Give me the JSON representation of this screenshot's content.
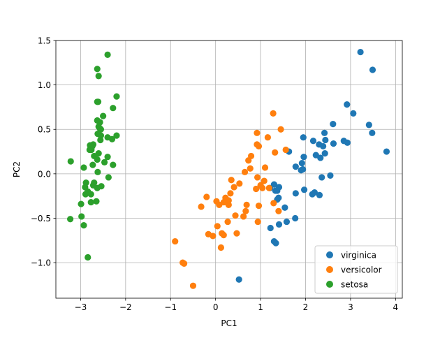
{
  "chart_data": {
    "type": "scatter",
    "title": "",
    "xlabel": "PC1",
    "ylabel": "PC2",
    "xlim": [
      -3.55,
      4.15
    ],
    "ylim": [
      -1.4,
      1.5
    ],
    "x_ticks": [
      -3,
      -2,
      -1,
      0,
      1,
      2,
      3,
      4
    ],
    "y_ticks": [
      -1.0,
      -0.5,
      0.0,
      0.5,
      1.0,
      1.5
    ],
    "x_tick_labels": [
      "−3",
      "−2",
      "−1",
      "0",
      "1",
      "2",
      "3",
      "4"
    ],
    "y_tick_labels": [
      "−1.0",
      "−0.5",
      "0.0",
      "0.5",
      "1.0",
      "1.5"
    ],
    "grid": true,
    "legend_position": "lower-right",
    "series": [
      {
        "name": "virginica",
        "color": "#1f77b4",
        "points": [
          [
            3.22,
            1.37
          ],
          [
            3.49,
            1.17
          ],
          [
            2.92,
            0.78
          ],
          [
            3.06,
            0.68
          ],
          [
            2.61,
            0.56
          ],
          [
            3.41,
            0.55
          ],
          [
            3.48,
            0.46
          ],
          [
            2.42,
            0.46
          ],
          [
            2.44,
            0.38
          ],
          [
            2.85,
            0.37
          ],
          [
            2.17,
            0.37
          ],
          [
            2.93,
            0.35
          ],
          [
            2.62,
            0.34
          ],
          [
            2.3,
            0.33
          ],
          [
            2.39,
            0.31
          ],
          [
            1.95,
            0.41
          ],
          [
            2.23,
            0.21
          ],
          [
            2.33,
            0.18
          ],
          [
            1.92,
            0.12
          ],
          [
            3.8,
            0.25
          ],
          [
            2.43,
            0.23
          ],
          [
            1.96,
            0.19
          ],
          [
            1.63,
            0.25
          ],
          [
            1.9,
            0.04
          ],
          [
            1.94,
            0.05
          ],
          [
            1.78,
            0.08
          ],
          [
            2.36,
            -0.04
          ],
          [
            2.55,
            -0.02
          ],
          [
            1.97,
            -0.18
          ],
          [
            2.2,
            -0.21
          ],
          [
            2.15,
            -0.23
          ],
          [
            1.78,
            -0.22
          ],
          [
            2.31,
            -0.24
          ],
          [
            1.21,
            -0.16
          ],
          [
            1.3,
            -0.12
          ],
          [
            1.33,
            -0.19
          ],
          [
            1.41,
            -0.15
          ],
          [
            1.37,
            -0.19
          ],
          [
            1.4,
            -0.27
          ],
          [
            1.37,
            -0.29
          ],
          [
            1.54,
            -0.38
          ],
          [
            1.77,
            -0.5
          ],
          [
            1.41,
            -0.57
          ],
          [
            1.58,
            -0.54
          ],
          [
            1.22,
            -0.61
          ],
          [
            1.3,
            -0.76
          ],
          [
            1.34,
            -0.78
          ],
          [
            0.52,
            -1.19
          ]
        ]
      },
      {
        "name": "versicolor",
        "color": "#ff7f0e",
        "points": [
          [
            1.28,
            0.68
          ],
          [
            1.45,
            0.5
          ],
          [
            0.92,
            0.46
          ],
          [
            1.16,
            0.41
          ],
          [
            0.92,
            0.33
          ],
          [
            0.96,
            0.31
          ],
          [
            0.79,
            0.2
          ],
          [
            1.32,
            0.24
          ],
          [
            1.56,
            0.27
          ],
          [
            0.73,
            0.15
          ],
          [
            0.65,
            0.02
          ],
          [
            0.77,
            0.06
          ],
          [
            1.1,
            0.07
          ],
          [
            0.93,
            -0.04
          ],
          [
            0.53,
            -0.11
          ],
          [
            1.0,
            -0.13
          ],
          [
            0.9,
            -0.17
          ],
          [
            1.08,
            -0.08
          ],
          [
            1.04,
            -0.16
          ],
          [
            0.35,
            -0.07
          ],
          [
            1.19,
            -0.16
          ],
          [
            0.41,
            -0.15
          ],
          [
            0.22,
            -0.27
          ],
          [
            0.18,
            -0.32
          ],
          [
            -0.2,
            -0.26
          ],
          [
            0.33,
            -0.22
          ],
          [
            0.29,
            -0.3
          ],
          [
            0.24,
            -0.32
          ],
          [
            0.29,
            -0.35
          ],
          [
            1.29,
            -0.33
          ],
          [
            1.4,
            -0.42
          ],
          [
            0.96,
            -0.36
          ],
          [
            0.69,
            -0.35
          ],
          [
            -0.32,
            -0.37
          ],
          [
            0.02,
            -0.31
          ],
          [
            0.08,
            -0.35
          ],
          [
            0.67,
            -0.42
          ],
          [
            0.62,
            -0.48
          ],
          [
            0.94,
            -0.54
          ],
          [
            0.27,
            -0.54
          ],
          [
            0.44,
            -0.47
          ],
          [
            0.04,
            -0.59
          ],
          [
            0.14,
            -0.67
          ],
          [
            -0.16,
            -0.68
          ],
          [
            -0.06,
            -0.7
          ],
          [
            0.18,
            -0.69
          ],
          [
            0.47,
            -0.67
          ],
          [
            0.12,
            -0.83
          ],
          [
            -0.9,
            -0.76
          ],
          [
            -0.73,
            -1.0
          ],
          [
            -0.7,
            -1.01
          ],
          [
            -0.5,
            -1.26
          ]
        ]
      },
      {
        "name": "setosa",
        "color": "#2ca02c",
        "points": [
          [
            -2.4,
            1.34
          ],
          [
            -2.63,
            1.18
          ],
          [
            -2.6,
            1.1
          ],
          [
            -2.2,
            0.87
          ],
          [
            -2.63,
            0.81
          ],
          [
            -2.61,
            0.81
          ],
          [
            -2.28,
            0.74
          ],
          [
            -2.5,
            0.65
          ],
          [
            -2.63,
            0.6
          ],
          [
            -2.57,
            0.58
          ],
          [
            -2.6,
            0.53
          ],
          [
            -2.57,
            0.51
          ],
          [
            -2.55,
            0.5
          ],
          [
            -2.62,
            0.45
          ],
          [
            -2.55,
            0.43
          ],
          [
            -2.2,
            0.43
          ],
          [
            -2.4,
            0.41
          ],
          [
            -2.3,
            0.39
          ],
          [
            -2.56,
            0.38
          ],
          [
            -2.72,
            0.33
          ],
          [
            -2.79,
            0.32
          ],
          [
            -2.74,
            0.31
          ],
          [
            -2.8,
            0.27
          ],
          [
            -2.76,
            0.27
          ],
          [
            -2.6,
            0.23
          ],
          [
            -2.7,
            0.2
          ],
          [
            -2.4,
            0.19
          ],
          [
            -2.63,
            0.16
          ],
          [
            -2.47,
            0.13
          ],
          [
            -3.22,
            0.14
          ],
          [
            -2.73,
            0.1
          ],
          [
            -2.28,
            0.1
          ],
          [
            -2.93,
            0.07
          ],
          [
            -2.62,
            0.02
          ],
          [
            -2.38,
            -0.04
          ],
          [
            -2.7,
            -0.1
          ],
          [
            -2.88,
            -0.1
          ],
          [
            -2.54,
            -0.14
          ],
          [
            -2.72,
            -0.13
          ],
          [
            -2.63,
            -0.16
          ],
          [
            -2.9,
            -0.15
          ],
          [
            -2.84,
            -0.2
          ],
          [
            -2.77,
            -0.23
          ],
          [
            -2.89,
            -0.23
          ],
          [
            -2.77,
            -0.32
          ],
          [
            -2.99,
            -0.34
          ],
          [
            -2.65,
            -0.31
          ],
          [
            -2.98,
            -0.48
          ],
          [
            -3.23,
            -0.51
          ],
          [
            -2.93,
            -0.58
          ],
          [
            -2.84,
            -0.94
          ]
        ]
      }
    ]
  }
}
